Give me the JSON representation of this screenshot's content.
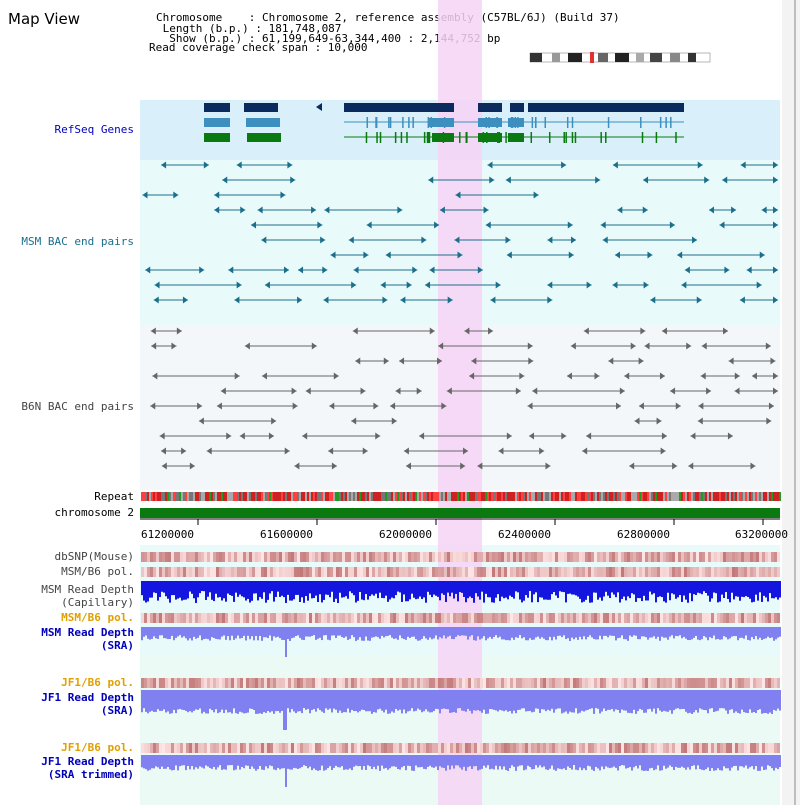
{
  "window": {
    "title": "Map View"
  },
  "info": {
    "chromosome_line": "Chromosome    : Chromosome 2, reference assembly (C57BL/6J) (Build 37)",
    "length_line": " Length (b.p.) : 181,748,087",
    "show_line": "  Show (b.p.) : 61,199,649-63,344,400 : 2,144,752 bp",
    "coverage_line": "Read coverage check span : 10,000"
  },
  "colors": {
    "refseq_bg": "#d9f0fb",
    "bac_bg": "#e8fbfa",
    "b6n_bg": "#f4f7fa",
    "highlight": "#f6d4f4",
    "gene_dark": "#0b2a5e",
    "gene_mid": "#3c8fbf",
    "gene_green": "#0a7a10",
    "msm_bac": "#1b6e8c",
    "b6n_bac": "#666666",
    "label_blue": "#0000bb",
    "label_teal": "#1b6e8c",
    "label_orange": "#e0a000",
    "label_gray": "#444444",
    "chrom_green": "#0a7a10",
    "depth_blue": "#1515e0",
    "depth_light": "#8080f0"
  },
  "tracks": {
    "refseq": "RefSeq Genes",
    "msm_bac": "MSM BAC end pairs",
    "b6n_bac": "B6N BAC end pairs",
    "repeat": "Repeat",
    "chromosome": "chromosome 2",
    "dbsnp": "dbSNP(Mouse)",
    "msm_b6_pol": "MSM/B6 pol.",
    "msm_depth_cap_1": "MSM Read Depth",
    "msm_depth_cap_2": "(Capillary)",
    "msm_b6_pol_2": "MSM/B6 pol.",
    "msm_depth_sra_1": "MSM Read Depth",
    "msm_depth_sra_2": "(SRA)",
    "jf1_b6_pol": "JF1/B6 pol.",
    "jf1_depth_sra_1": "JF1 Read Depth",
    "jf1_depth_sra_2": "(SRA)",
    "jf1_b6_pol_2": "JF1/B6 pol.",
    "jf1_depth_trim_1": "JF1 Read Depth",
    "jf1_depth_trim_2": "(SRA trimmed)"
  },
  "axis": {
    "ticks": [
      "61200000",
      "61600000",
      "62000000",
      "62400000",
      "62800000",
      "63200000"
    ]
  }
}
